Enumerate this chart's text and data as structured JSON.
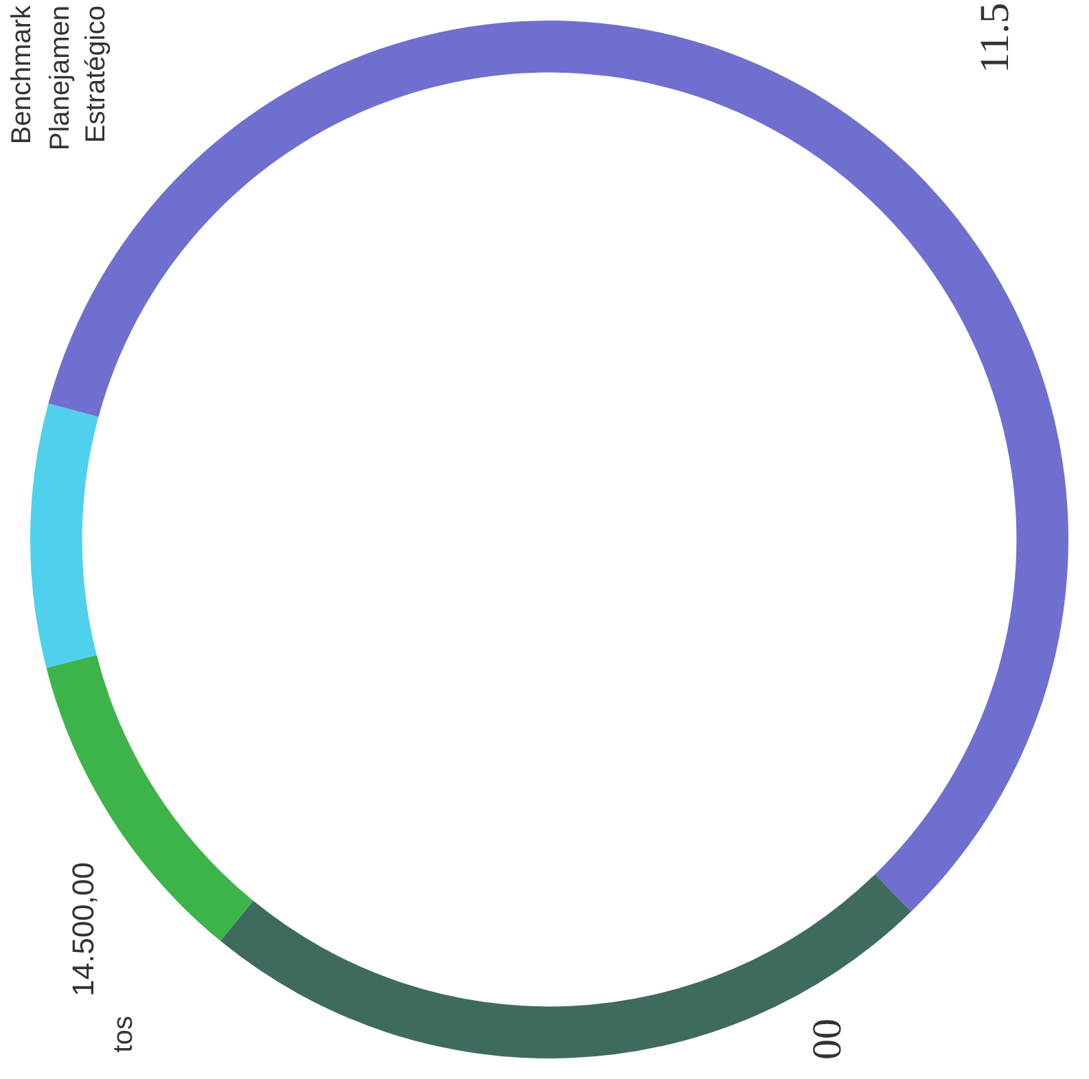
{
  "chart_data": {
    "type": "donut",
    "categories": [
      null,
      null,
      null,
      null
    ],
    "values": [
      58.5,
      23.2,
      10.1,
      8.2
    ],
    "colors": [
      "#6f6fd0",
      "#3f6a60",
      "#3cb44a",
      "#4fd0ec"
    ],
    "annotations": [
      "Benchmark",
      "Planejamen",
      "Estratégico",
      "11.5",
      "14.500,00",
      "tos",
      "00"
    ]
  }
}
